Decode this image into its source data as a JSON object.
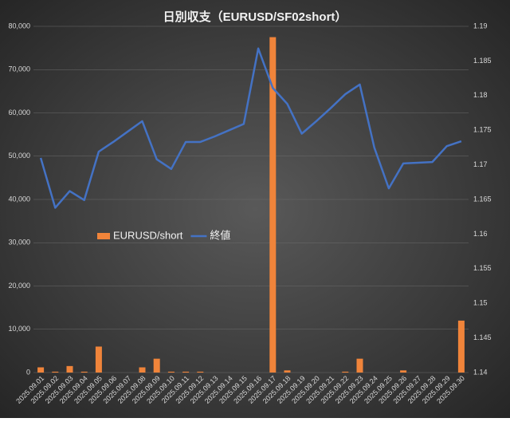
{
  "chart_data": {
    "type": "bar_line",
    "title": "日別収支（EURUSD/SF02short）",
    "categories": [
      "2025.09.01",
      "2025.09.02",
      "2025.09.03",
      "2025.09.04",
      "2025.09.05",
      "2025.09.06",
      "2025.09.07",
      "2025.09.08",
      "2025.09.09",
      "2025.09.10",
      "2025.09.11",
      "2025.09.12",
      "2025.09.13",
      "2025.09.14",
      "2025.09.15",
      "2025.09.16",
      "2025.09.17",
      "2025.09.18",
      "2025.09.19",
      "2025.09.20",
      "2025.09.21",
      "2025.09.22",
      "2025.09.23",
      "2025.09.24",
      "2025.09.25",
      "2025.09.26",
      "2025.09.27",
      "2025.09.28",
      "2025.09.29",
      "2025.09.30"
    ],
    "series": [
      {
        "name": "EURUSD/short",
        "type": "bar",
        "color": "#f0843a",
        "axis": "y",
        "values": [
          1200,
          200,
          1500,
          200,
          6000,
          0,
          0,
          1200,
          3200,
          200,
          200,
          200,
          0,
          0,
          0,
          0,
          77500,
          500,
          0,
          0,
          0,
          200,
          3200,
          0,
          0,
          500,
          0,
          0,
          0,
          12000
        ]
      },
      {
        "name": "終値",
        "type": "line",
        "color": "#4472c4",
        "axis": "y2",
        "values": [
          1.171,
          1.1638,
          1.1662,
          1.1649,
          1.1719,
          1.1733,
          1.1748,
          1.1763,
          1.1708,
          1.1694,
          1.1733,
          1.1733,
          1.1741,
          1.175,
          1.1759,
          1.1868,
          1.1811,
          1.1788,
          1.1745,
          1.1763,
          1.1782,
          1.1802,
          1.1816,
          1.1725,
          1.1666,
          1.1702,
          1.1703,
          1.1704,
          1.1727,
          1.1734
        ]
      }
    ],
    "ylim": [
      0,
      80000
    ],
    "yticks": [
      0,
      {
        "value": 10000,
        "label": "10,000"
      },
      {
        "value": 20000,
        "label": "20,000"
      },
      {
        "value": 30000,
        "label": "30,000"
      },
      {
        "value": 40000,
        "label": "40,000"
      },
      {
        "value": 50000,
        "label": "50,000"
      },
      {
        "value": 60000,
        "label": "60,000"
      },
      {
        "value": 70000,
        "label": "70,000"
      },
      {
        "value": 80000,
        "label": "80,000"
      }
    ],
    "y2lim": [
      1.14,
      1.19
    ],
    "y2ticks": [
      1.14,
      1.145,
      1.15,
      1.155,
      1.16,
      1.165,
      1.17,
      1.175,
      1.18,
      1.185,
      1.19
    ],
    "grid": true,
    "legend_position": "left"
  }
}
